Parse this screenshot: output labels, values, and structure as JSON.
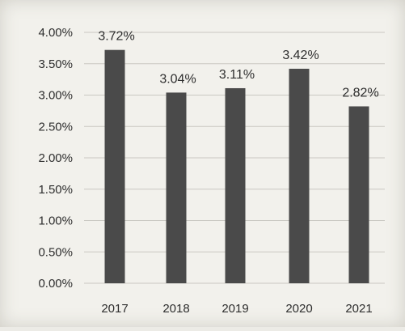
{
  "chart_data": {
    "type": "bar",
    "categories": [
      "2017",
      "2018",
      "2019",
      "2020",
      "2021"
    ],
    "values": [
      3.72,
      3.04,
      3.11,
      3.42,
      2.82
    ],
    "data_labels": [
      "3.72%",
      "3.04%",
      "3.11%",
      "3.42%",
      "2.82%"
    ],
    "y_ticks": [
      0,
      0.5,
      1,
      1.5,
      2,
      2.5,
      3,
      3.5,
      4
    ],
    "y_tick_labels": [
      "0.00%",
      "0.50%",
      "1.00%",
      "1.50%",
      "2.00%",
      "2.50%",
      "3.00%",
      "3.50%",
      "4.00%"
    ],
    "ylim": [
      0,
      4
    ],
    "grid": true,
    "legend": "none",
    "bar_color": "#4a4a4a",
    "grid_color": "#c9c8c2",
    "text_color": "#2e2e2e"
  }
}
